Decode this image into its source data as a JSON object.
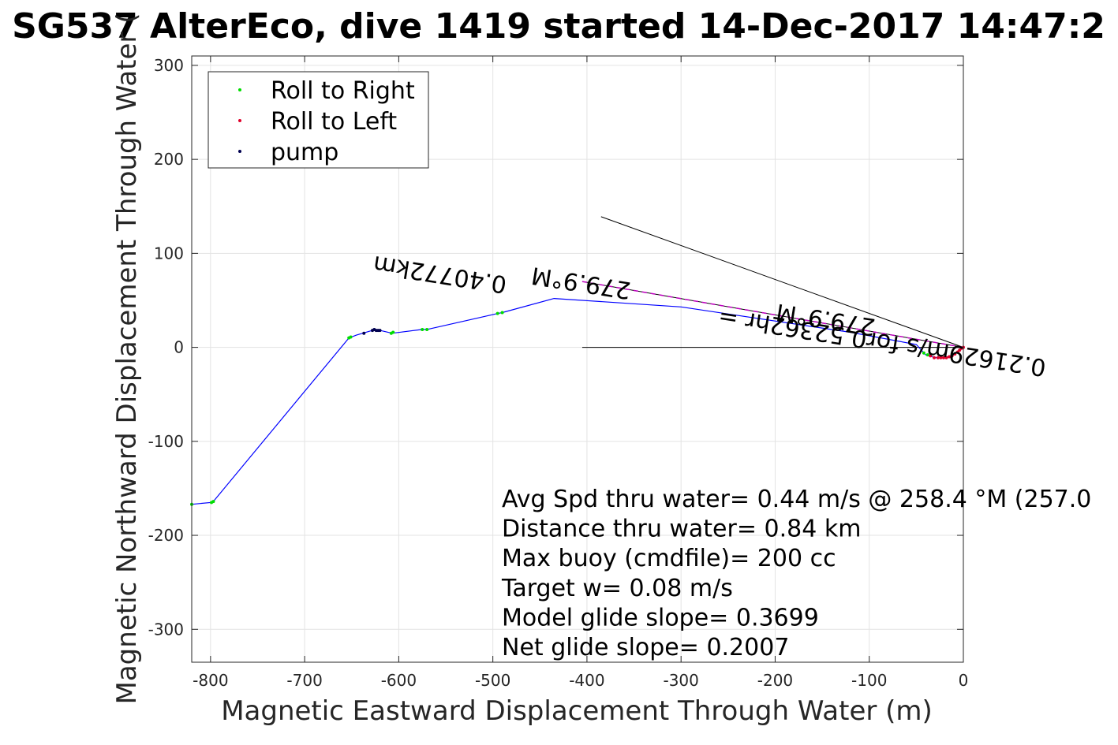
{
  "title": "SG537 AlterEco, dive 1419 started 14-Dec-2017 14:47:2",
  "colors": {
    "track": "#0000ff",
    "roll_right": "#00dd00",
    "roll_left": "#e0002a",
    "pump": "#000050",
    "current": "#c000c0",
    "grid": "#e3e3e3",
    "axes": "#262626"
  },
  "chart_data": {
    "type": "line",
    "xlabel": "Magnetic Eastward Displacement Through Water (m)",
    "ylabel": "Magnetic Northward Displacement Through Water (",
    "xlim": [
      -820,
      0
    ],
    "ylim": [
      -335,
      310
    ],
    "xticks": [
      -800,
      -700,
      -600,
      -500,
      -400,
      -300,
      -200,
      -100,
      0
    ],
    "xtick_labels": [
      "-800",
      "-700",
      "-600",
      "-500",
      "-400",
      "-300",
      "-200",
      "-100",
      "0"
    ],
    "yticks": [
      300,
      200,
      100,
      0,
      -100,
      -200,
      -300
    ],
    "ytick_labels": [
      "300",
      "200",
      "100",
      "0",
      "-100",
      "-200",
      "-300"
    ],
    "grid": true,
    "legend_position": "top-left",
    "series": [
      {
        "name": "Roll to Right",
        "kind": "points",
        "color_key": "roll_right",
        "x": [
          -820,
          -799,
          -797,
          -653,
          -651,
          -608,
          -606,
          -575,
          -570,
          -495,
          -490,
          -42,
          -38
        ],
        "y": [
          -167,
          -165,
          -164,
          10,
          11,
          15,
          16,
          19,
          19,
          36,
          37,
          -6,
          -8
        ]
      },
      {
        "name": "Roll to Left",
        "kind": "points",
        "color_key": "roll_left",
        "x": [
          -35,
          -31,
          -27,
          -24,
          -21,
          -18,
          -15,
          -12,
          -9,
          -6,
          -4,
          -2,
          0
        ],
        "y": [
          -9,
          -11,
          -11,
          -11,
          -11,
          -11,
          -10,
          -9,
          -7,
          -5,
          -3,
          -1,
          0
        ]
      },
      {
        "name": "pump",
        "kind": "points",
        "color_key": "pump",
        "x": [
          -637,
          -628,
          -626,
          -624,
          -622,
          -620
        ],
        "y": [
          15,
          18,
          19,
          18,
          18,
          18
        ]
      },
      {
        "name": "",
        "kind": "line",
        "color_key": "track",
        "x": [
          -820,
          -799,
          -797,
          -653,
          -645,
          -628,
          -620,
          -607,
          -575,
          -570,
          -495,
          -490,
          -435,
          -300,
          -120,
          -50,
          -40,
          -30,
          -20,
          -10,
          0
        ],
        "y": [
          -167,
          -165,
          -164,
          10,
          13,
          18,
          18,
          15,
          19,
          19,
          36,
          37,
          52,
          43,
          16,
          3,
          -8,
          -11,
          -11,
          -8,
          0
        ]
      }
    ],
    "vectors": [
      {
        "x": [
          -405,
          0
        ],
        "y": [
          0,
          0
        ]
      },
      {
        "x": [
          -385,
          0
        ],
        "y": [
          139,
          0
        ]
      },
      {
        "x": [
          -405,
          0
        ],
        "y": [
          70,
          0
        ]
      }
    ],
    "vector_labels": [
      {
        "text": "0.40772km",
        "x": -555,
        "y": 86,
        "angle": 189
      },
      {
        "text": "279.9°M",
        "x": -405,
        "y": 77,
        "angle": 189
      },
      {
        "text": "0.21629m/s for0.52362hr =",
        "x": -85,
        "y": 14,
        "angle": 189
      },
      {
        "text": "279.9°M",
        "x": -145,
        "y": 38,
        "angle": 189
      }
    ],
    "annotations": [
      "Avg Spd thru water=  0.44 m/s @ 258.4 °M (257.0",
      "Distance thru water=  0.84 km",
      "Max buoy (cmdfile)= 200 cc",
      "Target w= 0.08 m/s",
      "Model glide slope= 0.3699",
      "Net glide slope= 0.2007"
    ]
  }
}
